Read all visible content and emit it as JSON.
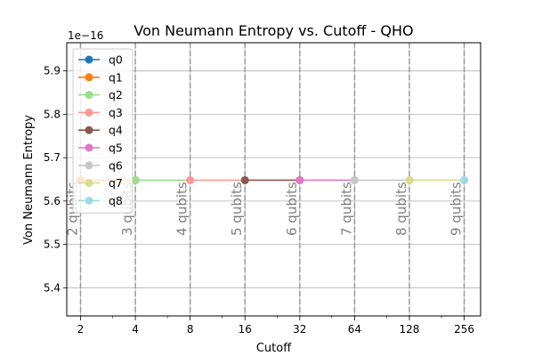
{
  "chart_data": {
    "type": "line",
    "title": "Von Neumann Entropy vs. Cutoff - QHO",
    "xlabel": "Cutoff",
    "ylabel": "Von Neumann Entropy",
    "x_scale": "log2",
    "y_offset_label": "1e−16",
    "xlim": [
      1.68,
      315
    ],
    "ylim": [
      5.335,
      5.965
    ],
    "x_ticks": [
      2,
      4,
      8,
      16,
      32,
      64,
      128,
      256
    ],
    "x_tick_labels": [
      "2",
      "4",
      "8",
      "16",
      "32",
      "64",
      "128",
      "256"
    ],
    "y_ticks": [
      5.4,
      5.5,
      5.6,
      5.7,
      5.8,
      5.9
    ],
    "y_tick_labels": [
      "5.4",
      "5.5",
      "5.6",
      "5.7",
      "5.8",
      "5.9"
    ],
    "grid": true,
    "legend_position": "upper-left",
    "series": [
      {
        "name": "q0",
        "color": "#1f77b4",
        "x": [
          2
        ],
        "y": [
          5.648
        ]
      },
      {
        "name": "q1",
        "color": "#ff7f0e",
        "x": [
          2,
          4
        ],
        "y": [
          5.648,
          5.648
        ]
      },
      {
        "name": "q2",
        "color": "#98df8a",
        "x": [
          4,
          8
        ],
        "y": [
          5.648,
          5.648
        ]
      },
      {
        "name": "q3",
        "color": "#ff9896",
        "x": [
          8,
          16
        ],
        "y": [
          5.648,
          5.648
        ]
      },
      {
        "name": "q4",
        "color": "#8c564b",
        "x": [
          16,
          32
        ],
        "y": [
          5.648,
          5.648
        ]
      },
      {
        "name": "q5",
        "color": "#e377c2",
        "x": [
          32,
          64
        ],
        "y": [
          5.648,
          5.648
        ]
      },
      {
        "name": "q6",
        "color": "#c7c7c7",
        "x": [
          64,
          128
        ],
        "y": [
          5.648,
          5.648
        ]
      },
      {
        "name": "q7",
        "color": "#dbdb8d",
        "x": [
          128,
          256
        ],
        "y": [
          5.648,
          5.648
        ]
      },
      {
        "name": "q8",
        "color": "#9edae5",
        "x": [
          256
        ],
        "y": [
          5.648
        ]
      }
    ],
    "vlines": [
      {
        "x": 2,
        "label": "2 qubits"
      },
      {
        "x": 4,
        "label": "3 qubits"
      },
      {
        "x": 8,
        "label": "4 qubits"
      },
      {
        "x": 16,
        "label": "5 qubits"
      },
      {
        "x": 32,
        "label": "6 qubits"
      },
      {
        "x": 64,
        "label": "7 qubits"
      },
      {
        "x": 128,
        "label": "8 qubits"
      },
      {
        "x": 256,
        "label": "9 qubits"
      }
    ]
  }
}
